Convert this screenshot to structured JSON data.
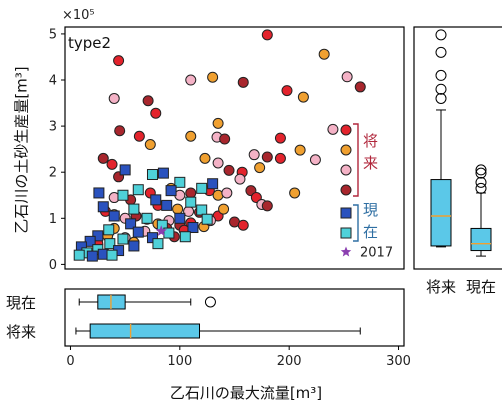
{
  "chart_data": [
    {
      "type": "scatter",
      "panel": "main",
      "annotation": "type2",
      "xlabel": "乙石川の最大流量[m³]",
      "ylabel": "乙石川の土砂生産量[m³]",
      "y_multiplier": "×10⁵",
      "xlim": [
        -5,
        305
      ],
      "ylim": [
        -0.1,
        5.15
      ],
      "xticks": [
        "0",
        "100",
        "200",
        "300"
      ],
      "yticks": [
        "0",
        "1",
        "2",
        "3",
        "4",
        "5"
      ],
      "legend": {
        "groups": [
          {
            "label": "将来",
            "color": "#b0263b",
            "markers": [
              "#e3232c",
              "#f0a030",
              "#f4b2c6",
              "#a8262d"
            ]
          },
          {
            "label": "現在",
            "color": "#2f6fa3",
            "markers": [
              "#2a52be",
              "#4fd1d9"
            ]
          }
        ],
        "star_label": "2017"
      },
      "series": [
        {
          "name": "将来",
          "marker": "circle",
          "colors": [
            "#e3232c",
            "#f0a030",
            "#f4b2c6",
            "#a8262d"
          ],
          "points": [
            [
              180,
              4.98
            ],
            [
              232,
              4.56
            ],
            [
              253,
              4.07
            ],
            [
              265,
              3.85
            ],
            [
              44,
              4.42
            ],
            [
              130,
              4.06
            ],
            [
              110,
              4.0
            ],
            [
              158,
              3.95
            ],
            [
              198,
              3.77
            ],
            [
              213,
              3.63
            ],
            [
              40,
              3.6
            ],
            [
              71,
              3.55
            ],
            [
              78,
              3.28
            ],
            [
              135,
              3.06
            ],
            [
              240,
              2.93
            ],
            [
              45,
              2.9
            ],
            [
              63,
              2.78
            ],
            [
              110,
              2.78
            ],
            [
              134,
              2.76
            ],
            [
              141,
              2.72
            ],
            [
              192,
              2.74
            ],
            [
              73,
              2.6
            ],
            [
              168,
              2.38
            ],
            [
              180,
              2.33
            ],
            [
              192,
              2.3
            ],
            [
              210,
              2.48
            ],
            [
              224,
              2.27
            ],
            [
              30,
              2.3
            ],
            [
              38,
              2.17
            ],
            [
              123,
              2.3
            ],
            [
              135,
              2.2
            ],
            [
              145,
              2.04
            ],
            [
              157,
              2.0
            ],
            [
              173,
              2.1
            ],
            [
              155,
              1.85
            ],
            [
              44,
              1.9
            ],
            [
              73,
              1.55
            ],
            [
              92,
              1.65
            ],
            [
              100,
              1.5
            ],
            [
              110,
              1.55
            ],
            [
              127,
              1.6
            ],
            [
              135,
              1.5
            ],
            [
              143,
              1.55
            ],
            [
              165,
              1.6
            ],
            [
              170,
              1.45
            ],
            [
              205,
              1.55
            ],
            [
              40,
              1.45
            ],
            [
              55,
              1.4
            ],
            [
              80,
              1.28
            ],
            [
              98,
              1.2
            ],
            [
              108,
              1.15
            ],
            [
              118,
              1.13
            ],
            [
              135,
              1.05
            ],
            [
              140,
              1.2
            ],
            [
              175,
              1.3
            ],
            [
              180,
              1.27
            ],
            [
              32,
              1.15
            ],
            [
              40,
              1.08
            ],
            [
              50,
              1.0
            ],
            [
              60,
              1.05
            ],
            [
              70,
              0.98
            ],
            [
              80,
              0.88
            ],
            [
              90,
              0.95
            ],
            [
              100,
              0.85
            ],
            [
              110,
              0.9
            ],
            [
              122,
              0.82
            ],
            [
              128,
              0.95
            ],
            [
              150,
              0.92
            ],
            [
              158,
              0.85
            ],
            [
              40,
              0.78
            ],
            [
              68,
              0.72
            ],
            [
              88,
              0.78
            ],
            [
              104,
              0.74
            ],
            [
              34,
              0.62
            ],
            [
              50,
              0.58
            ],
            [
              95,
              0.6
            ],
            [
              25,
              0.45
            ],
            [
              58,
              0.48
            ]
          ]
        },
        {
          "name": "現在",
          "marker": "square",
          "colors": [
            "#2a52be",
            "#4fd1d9"
          ],
          "points": [
            [
              50,
              2.05
            ],
            [
              75,
              1.95
            ],
            [
              85,
              1.98
            ],
            [
              100,
              1.78
            ],
            [
              130,
              1.75
            ],
            [
              62,
              1.62
            ],
            [
              92,
              1.6
            ],
            [
              120,
              1.65
            ],
            [
              26,
              1.55
            ],
            [
              48,
              1.5
            ],
            [
              78,
              1.4
            ],
            [
              110,
              1.35
            ],
            [
              30,
              1.25
            ],
            [
              58,
              1.2
            ],
            [
              88,
              1.28
            ],
            [
              120,
              1.18
            ],
            [
              40,
              1.05
            ],
            [
              70,
              1.0
            ],
            [
              100,
              1.0
            ],
            [
              125,
              0.98
            ],
            [
              55,
              0.88
            ],
            [
              84,
              0.85
            ],
            [
              112,
              0.8
            ],
            [
              35,
              0.75
            ],
            [
              62,
              0.7
            ],
            [
              90,
              0.68
            ],
            [
              25,
              0.62
            ],
            [
              48,
              0.55
            ],
            [
              75,
              0.58
            ],
            [
              105,
              0.6
            ],
            [
              18,
              0.5
            ],
            [
              36,
              0.45
            ],
            [
              58,
              0.4
            ],
            [
              80,
              0.45
            ],
            [
              10,
              0.38
            ],
            [
              25,
              0.32
            ],
            [
              44,
              0.3
            ],
            [
              15,
              0.25
            ],
            [
              30,
              0.22
            ],
            [
              8,
              0.2
            ],
            [
              20,
              0.18
            ],
            [
              38,
              0.2
            ]
          ]
        },
        {
          "name": "2017",
          "marker": "star",
          "color": "#8b3fb0",
          "points": [
            [
              83,
              0.72
            ]
          ]
        }
      ]
    },
    {
      "type": "box",
      "panel": "right",
      "orientation": "vertical",
      "categories": [
        "将来",
        "現在"
      ],
      "category_colors": [
        "#b0263b",
        "#2f6fa3"
      ],
      "box_color": "#5bc8e8",
      "median_color": "#f0a030",
      "ylim": [
        -0.1,
        5.15
      ],
      "boxes": [
        {
          "whislo": 0.38,
          "q1": 0.4,
          "med": 1.05,
          "q3": 1.84,
          "whishi": 3.35,
          "fliers": [
            3.6,
            3.8,
            4.1,
            4.6,
            4.98
          ]
        },
        {
          "whislo": 0.18,
          "q1": 0.3,
          "med": 0.45,
          "q3": 0.78,
          "whishi": 1.55,
          "fliers": [
            1.65,
            1.78,
            1.98,
            2.05
          ]
        }
      ]
    },
    {
      "type": "box",
      "panel": "bottom",
      "orientation": "horizontal",
      "categories": [
        "現在",
        "将来"
      ],
      "category_colors": [
        "#2f6fa3",
        "#b0263b"
      ],
      "box_color": "#5bc8e8",
      "median_color": "#f0a030",
      "xlim": [
        -5,
        305
      ],
      "boxes": [
        {
          "whislo": 8,
          "q1": 25,
          "med": 37,
          "q3": 50,
          "whishi": 110,
          "fliers": [
            128
          ]
        },
        {
          "whislo": 5,
          "q1": 18,
          "med": 55,
          "q3": 118,
          "whishi": 265,
          "fliers": []
        }
      ]
    }
  ]
}
